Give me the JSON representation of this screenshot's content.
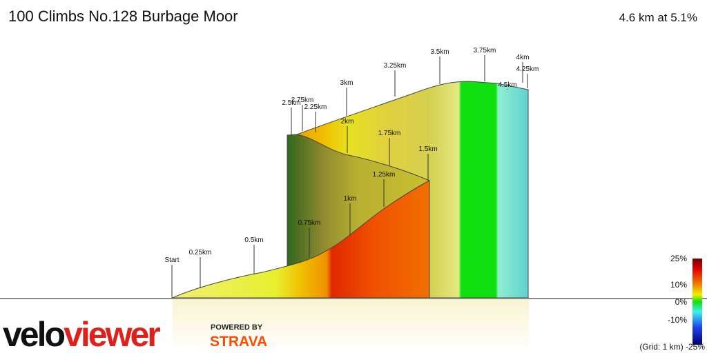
{
  "header": {
    "title": "100 Climbs No.128 Burbage Moor",
    "summary": "4.6 km at 5.1%"
  },
  "markers": [
    "Start",
    "0.25km",
    "0.5km",
    "0.75km",
    "1km",
    "1.25km",
    "1.5km",
    "1.75km",
    "2km",
    "2.25km",
    "2.5km",
    "2.75km",
    "3km",
    "3.25km",
    "3.5km",
    "3.75km",
    "4km",
    "4.25km",
    "4.5km"
  ],
  "legend": {
    "labels": [
      "25%",
      "10%",
      "0%",
      "-10%"
    ],
    "grid_note": "(Grid: 1 km) -25%"
  },
  "branding": {
    "logo_left": "velo",
    "logo_right": "viewer",
    "powered": "POWERED BY",
    "strava": "STRAVA"
  }
}
